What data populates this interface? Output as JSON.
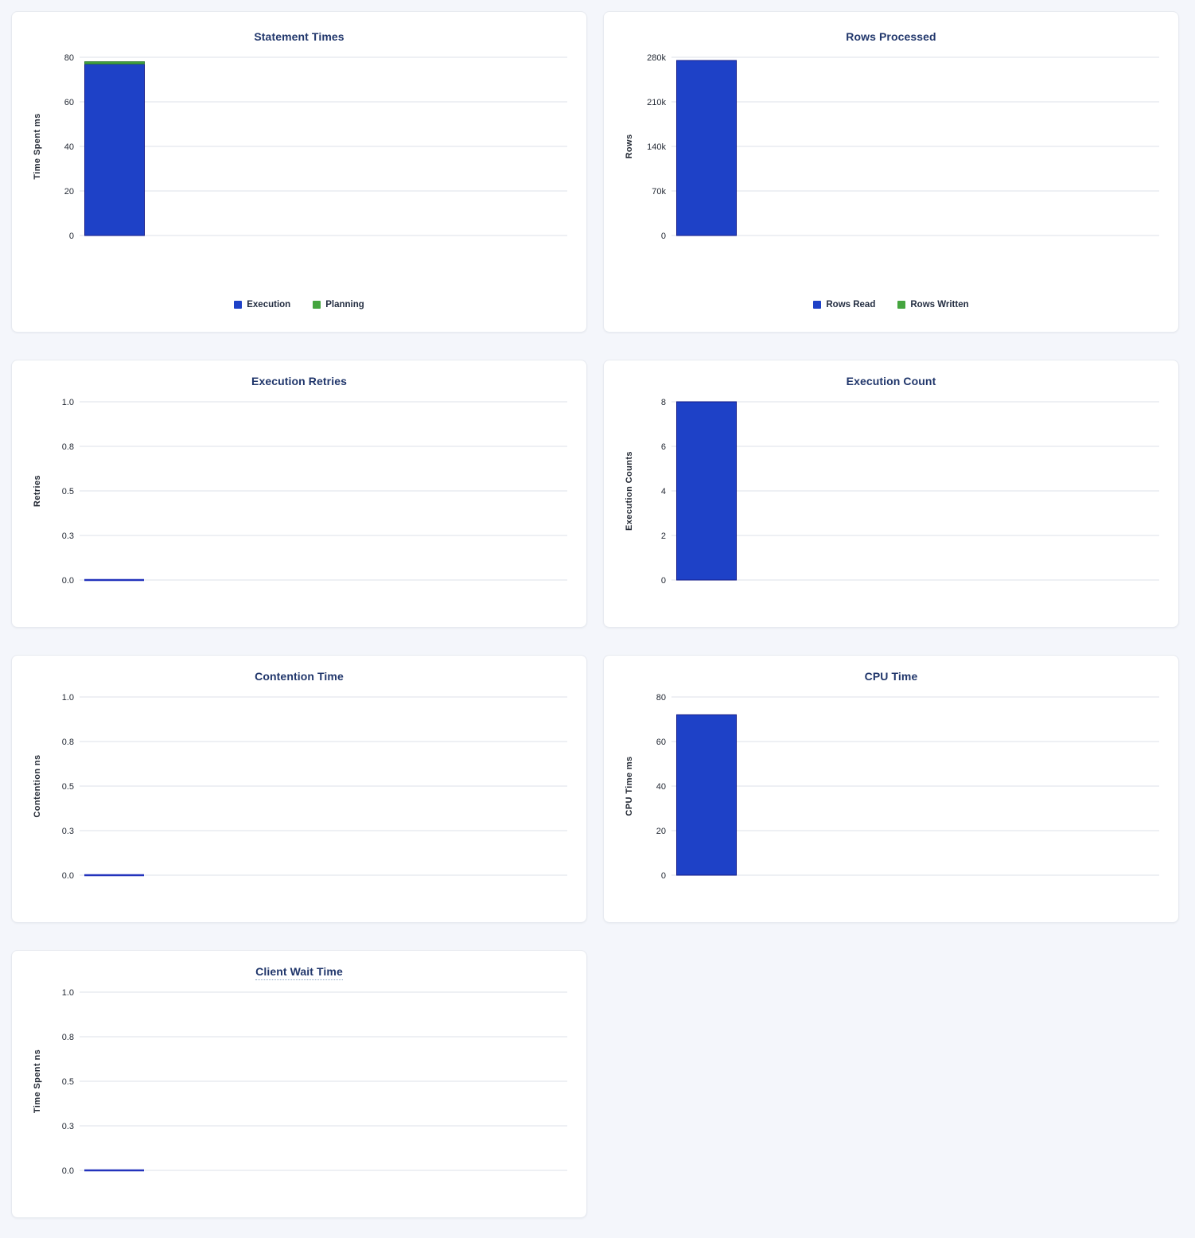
{
  "page": {
    "background_color": "#f4f6fb",
    "card_background": "#ffffff",
    "title_color": "#20366b",
    "gridline_color": "#e9ebf0",
    "tick_text_color": "#242a35",
    "zero_line_color": "#2333bc"
  },
  "chart_data": [
    {
      "id": "statement-times",
      "type": "bar",
      "size": "tall",
      "title": "Statement Times",
      "title_tooltip_underline": false,
      "ylabel": "Time Spent ms",
      "ylim": [
        0,
        80
      ],
      "tick_values": [
        0,
        20,
        40,
        60,
        80
      ],
      "tick_labels": [
        "0",
        "20",
        "40",
        "60",
        "80"
      ],
      "stacked": true,
      "series": [
        {
          "name": "Execution",
          "value": 77,
          "color": "#1e41c7",
          "stroke": "#141b8a"
        },
        {
          "name": "Planning",
          "value": 1,
          "color": "#45a53f",
          "stroke": "#2f7c33"
        }
      ],
      "legend": [
        {
          "label": "Execution",
          "color": "#1e41c7"
        },
        {
          "label": "Planning",
          "color": "#45a53f"
        }
      ]
    },
    {
      "id": "rows-processed",
      "type": "bar",
      "size": "tall",
      "title": "Rows Processed",
      "title_tooltip_underline": false,
      "ylabel": "Rows",
      "ylim": [
        0,
        280000
      ],
      "tick_values": [
        0,
        70000,
        140000,
        210000,
        280000
      ],
      "tick_labels": [
        "0",
        "70k",
        "140k",
        "210k",
        "280k"
      ],
      "stacked": true,
      "series": [
        {
          "name": "Rows Read",
          "value": 275000,
          "color": "#1e41c7",
          "stroke": "#141b8a"
        },
        {
          "name": "Rows Written",
          "value": 0,
          "color": "#45a53f",
          "stroke": "#2f7c33"
        }
      ],
      "legend": [
        {
          "label": "Rows Read",
          "color": "#1e41c7"
        },
        {
          "label": "Rows Written",
          "color": "#45a53f"
        }
      ]
    },
    {
      "id": "execution-retries",
      "type": "bar",
      "size": "short",
      "title": "Execution Retries",
      "title_tooltip_underline": false,
      "ylabel": "Retries",
      "ylim": [
        0,
        1
      ],
      "tick_values": [
        0,
        0.25,
        0.5,
        0.75,
        1
      ],
      "tick_labels": [
        "0.0",
        "0.3",
        "0.5",
        "0.8",
        "1.0"
      ],
      "stacked": false,
      "series": [
        {
          "name": "Retries",
          "value": 0,
          "color": "#1e41c7",
          "stroke": "#141b8a"
        }
      ],
      "legend": []
    },
    {
      "id": "execution-count",
      "type": "bar",
      "size": "short",
      "title": "Execution Count",
      "title_tooltip_underline": false,
      "ylabel": "Execution Counts",
      "ylim": [
        0,
        8
      ],
      "tick_values": [
        0,
        2,
        4,
        6,
        8
      ],
      "tick_labels": [
        "0",
        "2",
        "4",
        "6",
        "8"
      ],
      "stacked": false,
      "series": [
        {
          "name": "Execution Count",
          "value": 8,
          "color": "#1e41c7",
          "stroke": "#141b8a"
        }
      ],
      "legend": []
    },
    {
      "id": "contention-time",
      "type": "bar",
      "size": "short",
      "title": "Contention Time",
      "title_tooltip_underline": false,
      "ylabel": "Contention ns",
      "ylim": [
        0,
        1
      ],
      "tick_values": [
        0,
        0.25,
        0.5,
        0.75,
        1
      ],
      "tick_labels": [
        "0.0",
        "0.3",
        "0.5",
        "0.8",
        "1.0"
      ],
      "stacked": false,
      "series": [
        {
          "name": "Contention",
          "value": 0,
          "color": "#1e41c7",
          "stroke": "#141b8a"
        }
      ],
      "legend": []
    },
    {
      "id": "cpu-time",
      "type": "bar",
      "size": "short",
      "title": "CPU Time",
      "title_tooltip_underline": false,
      "ylabel": "CPU Time ms",
      "ylim": [
        0,
        80
      ],
      "tick_values": [
        0,
        20,
        40,
        60,
        80
      ],
      "tick_labels": [
        "0",
        "20",
        "40",
        "60",
        "80"
      ],
      "stacked": false,
      "series": [
        {
          "name": "CPU Time",
          "value": 72,
          "color": "#1e41c7",
          "stroke": "#141b8a"
        }
      ],
      "legend": []
    },
    {
      "id": "client-wait-time",
      "type": "bar",
      "size": "short",
      "title": "Client Wait Time",
      "title_tooltip_underline": true,
      "ylabel": "Time Spent ns",
      "ylim": [
        0,
        1
      ],
      "tick_values": [
        0,
        0.25,
        0.5,
        0.75,
        1
      ],
      "tick_labels": [
        "0.0",
        "0.3",
        "0.5",
        "0.8",
        "1.0"
      ],
      "stacked": false,
      "series": [
        {
          "name": "Client Wait",
          "value": 0,
          "color": "#1e41c7",
          "stroke": "#141b8a"
        }
      ],
      "legend": []
    }
  ]
}
